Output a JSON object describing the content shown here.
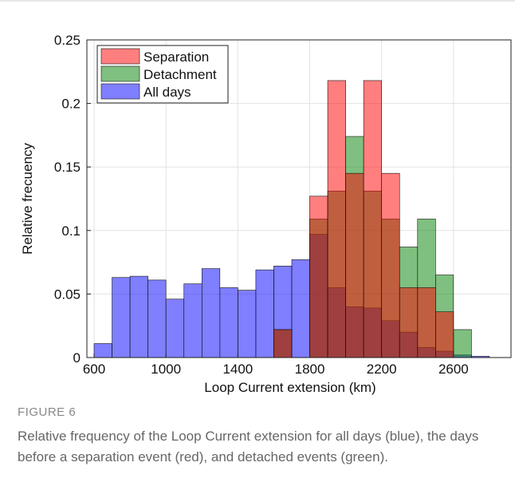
{
  "chart_data": {
    "type": "histogram",
    "xlabel": "Loop Current extension (km)",
    "ylabel": "Relative frecuency",
    "bins": [
      600,
      700,
      800,
      900,
      1000,
      1100,
      1200,
      1300,
      1400,
      1500,
      1600,
      1700,
      1800,
      1900,
      2000,
      2100,
      2200,
      2300,
      2400,
      2500,
      2600,
      2700,
      2800
    ],
    "series": [
      {
        "name": "Separation",
        "color": "#ff0000",
        "values": [
          0,
          0,
          0,
          0,
          0,
          0,
          0,
          0,
          0,
          0,
          0.022,
          0,
          0.127,
          0.218,
          0.145,
          0.218,
          0.145,
          0.055,
          0.055,
          0.036,
          0,
          0
        ]
      },
      {
        "name": "Detachment",
        "color": "#008000",
        "values": [
          0,
          0,
          0,
          0,
          0,
          0,
          0,
          0,
          0,
          0,
          0.022,
          0,
          0.109,
          0.131,
          0.174,
          0.131,
          0.109,
          0.087,
          0.109,
          0.065,
          0.022,
          0
        ]
      },
      {
        "name": "All days",
        "color": "#0000ff",
        "values": [
          0.011,
          0.063,
          0.064,
          0.061,
          0.046,
          0.058,
          0.07,
          0.055,
          0.053,
          0.069,
          0.072,
          0.077,
          0.097,
          0.055,
          0.04,
          0.039,
          0.029,
          0.02,
          0.008,
          0.005,
          0.002,
          0.001
        ]
      }
    ],
    "xlim": [
      560,
      2920
    ],
    "ylim": [
      0,
      0.25
    ],
    "xticks": [
      600,
      1000,
      1400,
      1800,
      2200,
      2600
    ],
    "yticks": [
      0,
      0.05,
      0.1,
      0.15,
      0.2,
      0.25
    ],
    "grid": true,
    "legend": "upper left",
    "opacity": 0.5
  },
  "caption": {
    "label": "FIGURE 6",
    "text": "Relative frequency of the Loop Current extension for all days (blue), the days before a separation event (red), and detached events (green)."
  }
}
